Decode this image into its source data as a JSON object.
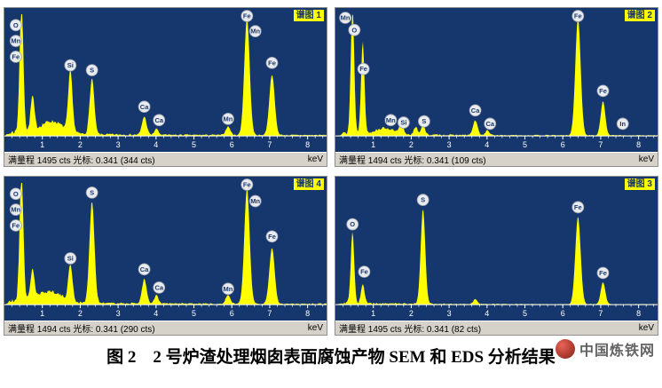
{
  "colors": {
    "panel_bg": "#16376d",
    "spectrum": "#ffff00",
    "chip_bg": "#ffff00",
    "chip_text": "#15366e",
    "status_bg": "#d6d2c9",
    "axis_text": "#ffffff",
    "badge_bg": "#e9ebee",
    "badge_border": "#97a0ad",
    "badge_text": "#17386e"
  },
  "axis": {
    "tick_labels": [
      "1",
      "2",
      "3",
      "4",
      "5",
      "6",
      "7",
      "8"
    ],
    "max_kev": 8.5,
    "unit": "keV"
  },
  "chart_data": [
    {
      "type": "area",
      "title": "谱图 1",
      "full_scale_cts": 1495,
      "cursor_kev": 0.341,
      "cursor_cts": 344,
      "status_text": "满量程 1495 cts 光标: 0.341 (344 cts)",
      "unit": "keV",
      "seed": 7,
      "noise": 1.0,
      "peaks": [
        {
          "kev": 0.45,
          "h": 1.05,
          "w": 0.05
        },
        {
          "kev": 0.74,
          "h": 0.28,
          "w": 0.05
        },
        {
          "kev": 1.25,
          "h": 0.1,
          "w": 0.3
        },
        {
          "kev": 1.74,
          "h": 0.5,
          "w": 0.055
        },
        {
          "kev": 2.31,
          "h": 0.46,
          "w": 0.06
        },
        {
          "kev": 3.69,
          "h": 0.15,
          "w": 0.06
        },
        {
          "kev": 4.01,
          "h": 0.05,
          "w": 0.05
        },
        {
          "kev": 5.9,
          "h": 0.07,
          "w": 0.06
        },
        {
          "kev": 6.4,
          "h": 0.97,
          "w": 0.07
        },
        {
          "kev": 7.06,
          "h": 0.5,
          "w": 0.07
        }
      ],
      "labels": [
        {
          "el": "O",
          "kev": 0.3,
          "f": 0.91
        },
        {
          "el": "Mn",
          "kev": 0.3,
          "f": 0.78
        },
        {
          "el": "Fe",
          "kev": 0.3,
          "f": 0.65
        },
        {
          "el": "Si",
          "kev": 1.74,
          "f": 0.58
        },
        {
          "el": "S",
          "kev": 2.31,
          "f": 0.54
        },
        {
          "el": "Ca",
          "kev": 3.69,
          "f": 0.24
        },
        {
          "el": "Ca",
          "kev": 4.08,
          "f": 0.13
        },
        {
          "el": "Mn",
          "kev": 5.9,
          "f": 0.14
        },
        {
          "el": "Fe",
          "kev": 6.4,
          "f": 0.985
        },
        {
          "el": "Mn",
          "kev": 6.62,
          "f": 0.86
        },
        {
          "el": "Fe",
          "kev": 7.06,
          "f": 0.6
        }
      ]
    },
    {
      "type": "area",
      "title": "谱图 2",
      "full_scale_cts": 1494,
      "cursor_kev": 0.341,
      "cursor_cts": 109,
      "status_text": "满量程 1494 cts 光标: 0.341 (109 cts)",
      "unit": "keV",
      "seed": 13,
      "noise": 0.7,
      "peaks": [
        {
          "kev": 0.45,
          "h": 1.05,
          "w": 0.045
        },
        {
          "kev": 0.72,
          "h": 0.75,
          "w": 0.045
        },
        {
          "kev": 1.3,
          "h": 0.05,
          "w": 0.25
        },
        {
          "kev": 1.74,
          "h": 0.09,
          "w": 0.05
        },
        {
          "kev": 2.12,
          "h": 0.06,
          "w": 0.05
        },
        {
          "kev": 2.31,
          "h": 0.08,
          "w": 0.05
        },
        {
          "kev": 3.69,
          "h": 0.12,
          "w": 0.06
        },
        {
          "kev": 4.01,
          "h": 0.04,
          "w": 0.05
        },
        {
          "kev": 6.4,
          "h": 0.97,
          "w": 0.07
        },
        {
          "kev": 7.06,
          "h": 0.28,
          "w": 0.06
        }
      ],
      "labels": [
        {
          "el": "Mn",
          "kev": 0.26,
          "f": 0.97
        },
        {
          "el": "O",
          "kev": 0.5,
          "f": 0.87
        },
        {
          "el": "Fe",
          "kev": 0.74,
          "f": 0.55
        },
        {
          "el": "Mn",
          "kev": 1.46,
          "f": 0.13
        },
        {
          "el": "Si",
          "kev": 1.8,
          "f": 0.11
        },
        {
          "el": "S",
          "kev": 2.34,
          "f": 0.12
        },
        {
          "el": "Ca",
          "kev": 3.69,
          "f": 0.21
        },
        {
          "el": "Ca",
          "kev": 4.08,
          "f": 0.1
        },
        {
          "el": "Fe",
          "kev": 6.4,
          "f": 0.985
        },
        {
          "el": "Fe",
          "kev": 7.06,
          "f": 0.37
        },
        {
          "el": "In",
          "kev": 7.58,
          "f": 0.1
        }
      ]
    },
    {
      "type": "area",
      "title": "谱图 4",
      "full_scale_cts": 1494,
      "cursor_kev": 0.341,
      "cursor_cts": 290,
      "status_text": "满量程 1494 cts 光标: 0.341 (290 cts)",
      "unit": "keV",
      "seed": 21,
      "noise": 1.0,
      "peaks": [
        {
          "kev": 0.45,
          "h": 1.05,
          "w": 0.05
        },
        {
          "kev": 0.74,
          "h": 0.25,
          "w": 0.05
        },
        {
          "kev": 1.2,
          "h": 0.09,
          "w": 0.3
        },
        {
          "kev": 1.74,
          "h": 0.3,
          "w": 0.055
        },
        {
          "kev": 2.31,
          "h": 0.84,
          "w": 0.065
        },
        {
          "kev": 3.69,
          "h": 0.2,
          "w": 0.06
        },
        {
          "kev": 4.01,
          "h": 0.07,
          "w": 0.05
        },
        {
          "kev": 5.9,
          "h": 0.07,
          "w": 0.06
        },
        {
          "kev": 6.4,
          "h": 0.95,
          "w": 0.07
        },
        {
          "kev": 7.06,
          "h": 0.46,
          "w": 0.07
        }
      ],
      "labels": [
        {
          "el": "O",
          "kev": 0.3,
          "f": 0.91
        },
        {
          "el": "Mn",
          "kev": 0.3,
          "f": 0.78
        },
        {
          "el": "Fe",
          "kev": 0.3,
          "f": 0.65
        },
        {
          "el": "Si",
          "kev": 1.74,
          "f": 0.38
        },
        {
          "el": "S",
          "kev": 2.31,
          "f": 0.92
        },
        {
          "el": "Ca",
          "kev": 3.69,
          "f": 0.29
        },
        {
          "el": "Ca",
          "kev": 4.08,
          "f": 0.14
        },
        {
          "el": "Mn",
          "kev": 5.9,
          "f": 0.13
        },
        {
          "el": "Fe",
          "kev": 6.4,
          "f": 0.985
        },
        {
          "el": "Mn",
          "kev": 6.62,
          "f": 0.85
        },
        {
          "el": "Fe",
          "kev": 7.06,
          "f": 0.56
        }
      ]
    },
    {
      "type": "area",
      "title": "谱图 3",
      "full_scale_cts": 1495,
      "cursor_kev": 0.341,
      "cursor_cts": 82,
      "status_text": "满量程 1495 cts 光标: 0.341 (82 cts)",
      "unit": "keV",
      "seed": 29,
      "noise": 0.5,
      "peaks": [
        {
          "kev": 0.45,
          "h": 0.58,
          "w": 0.045
        },
        {
          "kev": 0.72,
          "h": 0.16,
          "w": 0.045
        },
        {
          "kev": 2.31,
          "h": 0.78,
          "w": 0.06
        },
        {
          "kev": 3.69,
          "h": 0.04,
          "w": 0.05
        },
        {
          "kev": 6.4,
          "h": 0.72,
          "w": 0.07
        },
        {
          "kev": 7.06,
          "h": 0.18,
          "w": 0.06
        }
      ],
      "labels": [
        {
          "el": "O",
          "kev": 0.45,
          "f": 0.66
        },
        {
          "el": "Fe",
          "kev": 0.76,
          "f": 0.27
        },
        {
          "el": "S",
          "kev": 2.31,
          "f": 0.86
        },
        {
          "el": "Fe",
          "kev": 6.4,
          "f": 0.8
        },
        {
          "el": "Fe",
          "kev": 7.06,
          "f": 0.26
        }
      ]
    }
  ],
  "figure": {
    "caption": "图 2　2 号炉渣处理烟囱表面腐蚀产物 SEM 和 EDS 分析结果"
  },
  "watermark": {
    "site": "中国炼铁网"
  }
}
